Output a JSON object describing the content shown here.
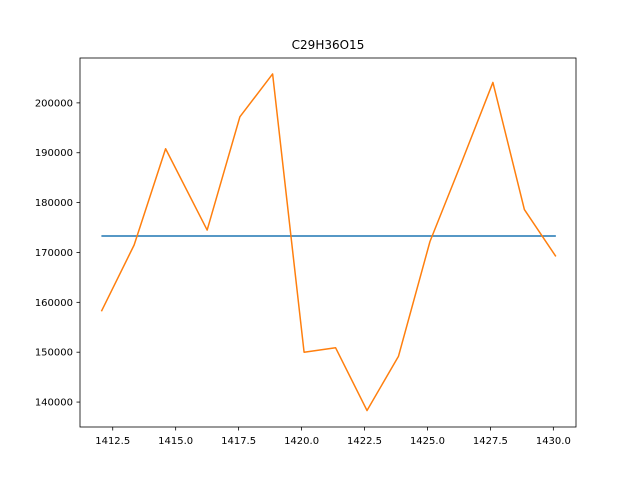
{
  "chart_data": {
    "type": "line",
    "title": "C29H36O15",
    "xlabel": "",
    "ylabel": "",
    "xlim": [
      1411.2,
      1430.9
    ],
    "ylim": [
      135000,
      209000
    ],
    "x_ticks": [
      1412.5,
      1415.0,
      1417.5,
      1420.0,
      1422.5,
      1425.0,
      1427.5,
      1430.0
    ],
    "x_tick_labels": [
      "1412.5",
      "1415.0",
      "1417.5",
      "1420.0",
      "1422.5",
      "1425.0",
      "1427.5",
      "1430.0"
    ],
    "y_ticks": [
      140000,
      150000,
      160000,
      170000,
      180000,
      190000,
      200000
    ],
    "y_tick_labels": [
      "140000",
      "150000",
      "160000",
      "170000",
      "180000",
      "190000",
      "200000"
    ],
    "grid": false,
    "series": [
      {
        "color": "#1f77b4",
        "x": [
          1412.05,
          1430.1
        ],
        "y": [
          173300,
          173300
        ]
      },
      {
        "color": "#ff7f0e",
        "x": [
          1412.05,
          1413.35,
          1414.6,
          1416.25,
          1417.55,
          1418.85,
          1420.1,
          1421.35,
          1422.6,
          1423.85,
          1425.1,
          1426.35,
          1427.6,
          1428.85,
          1430.1
        ],
        "y": [
          158200,
          171500,
          190800,
          174500,
          197200,
          205800,
          150000,
          150900,
          138300,
          149200,
          172200,
          188000,
          204100,
          178600,
          169200
        ]
      }
    ]
  }
}
